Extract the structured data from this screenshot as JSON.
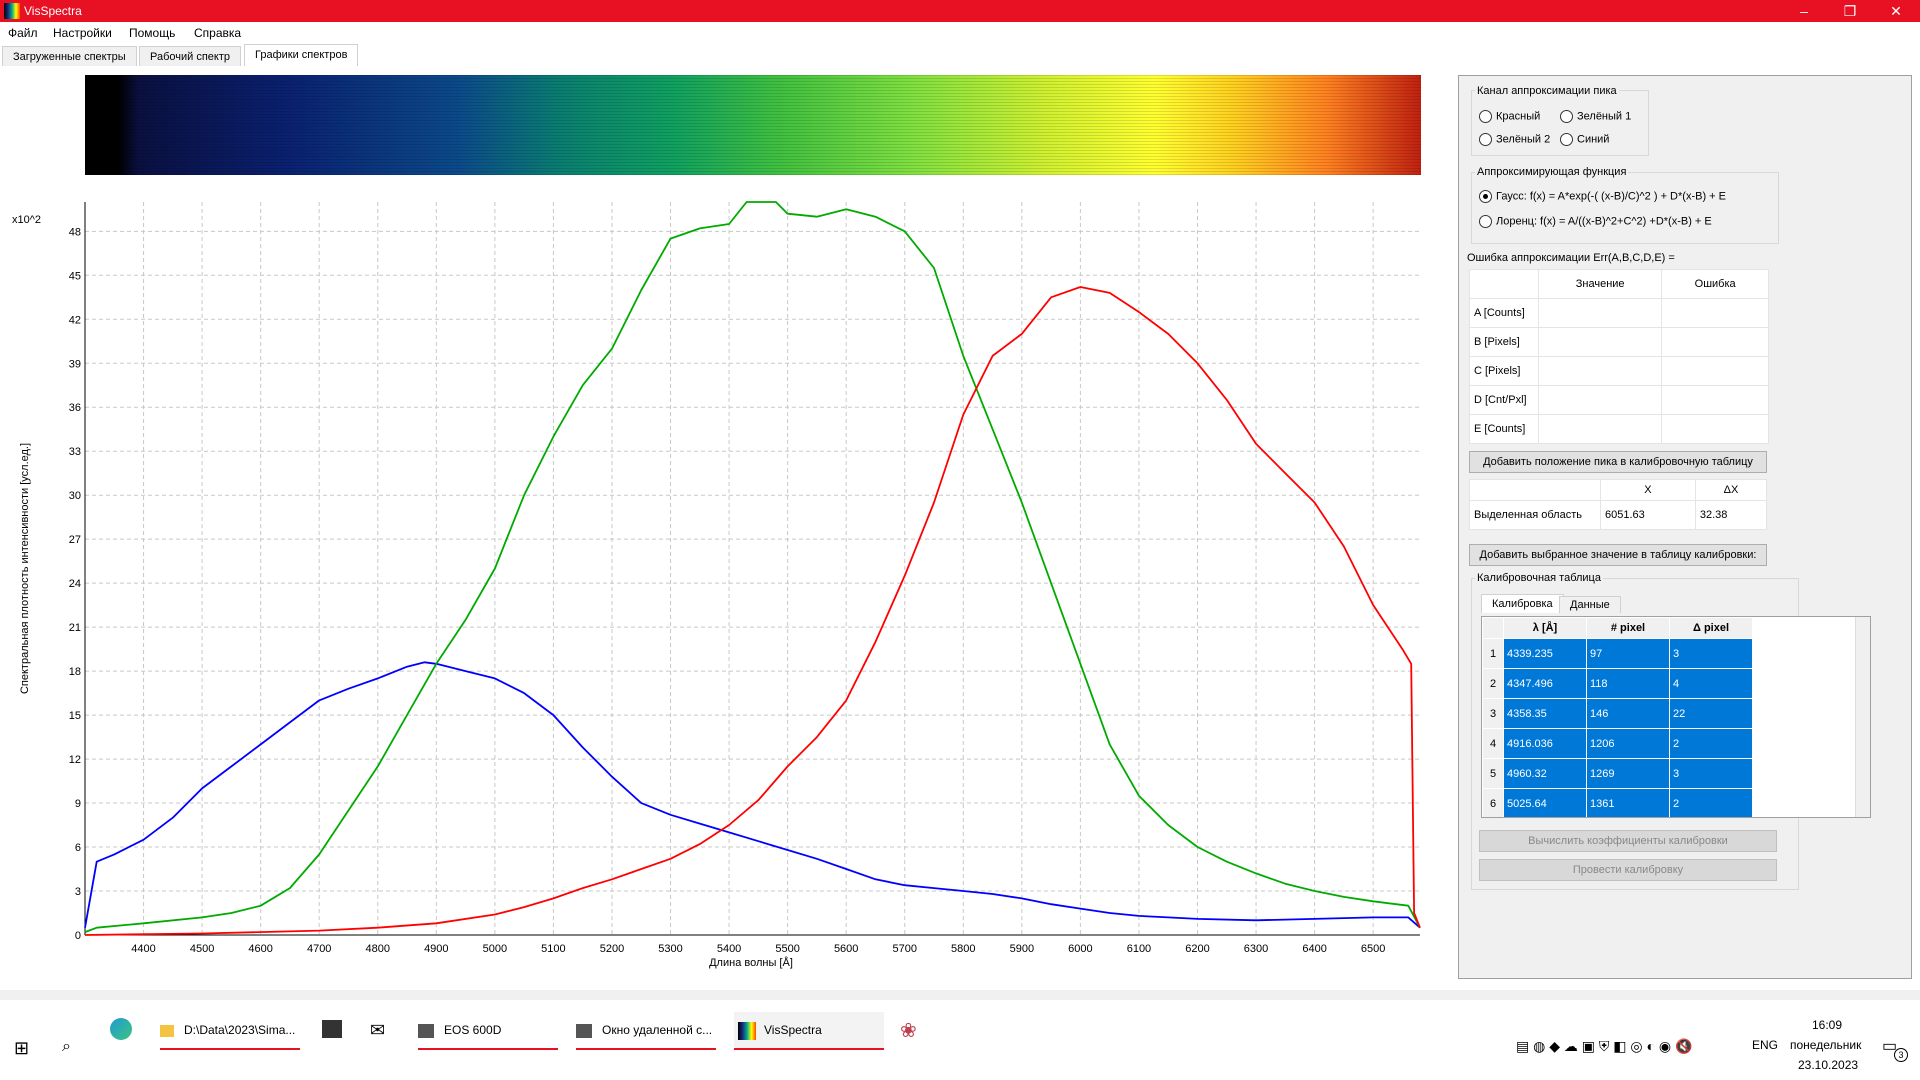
{
  "window": {
    "title": "VisSpectra",
    "controls": [
      "–",
      "❐",
      "✕"
    ]
  },
  "menu": [
    "Файл",
    "Настройки",
    "Помощь",
    "Справка"
  ],
  "tabs": [
    {
      "label": "Загруженные спектры",
      "active": false
    },
    {
      "label": "Рабочий спектр",
      "active": false
    },
    {
      "label": "Графики спектров",
      "active": true
    }
  ],
  "chart_data": {
    "type": "line",
    "ylabel": "Спектральная плотность интенсивности [усл.ед.]",
    "xlabel": "Длина волны  [Å]",
    "yscale_label": "x10^2",
    "xlim": [
      4300,
      6580
    ],
    "ylim": [
      0,
      50
    ],
    "xticks": [
      4400,
      4500,
      4600,
      4700,
      4800,
      4900,
      5000,
      5100,
      5200,
      5300,
      5400,
      5500,
      5600,
      5700,
      5800,
      5900,
      6000,
      6100,
      6200,
      6300,
      6400,
      6500
    ],
    "yticks": [
      0,
      3,
      6,
      9,
      12,
      15,
      18,
      21,
      24,
      27,
      30,
      33,
      36,
      39,
      42,
      45,
      48
    ],
    "grid": true,
    "series": [
      {
        "color": "#0000ff",
        "points": [
          [
            4300,
            0.5
          ],
          [
            4320,
            5.0
          ],
          [
            4350,
            5.5
          ],
          [
            4400,
            6.5
          ],
          [
            4450,
            8.0
          ],
          [
            4500,
            10.0
          ],
          [
            4550,
            11.5
          ],
          [
            4600,
            13.0
          ],
          [
            4650,
            14.5
          ],
          [
            4700,
            16.0
          ],
          [
            4750,
            16.8
          ],
          [
            4800,
            17.5
          ],
          [
            4850,
            18.3
          ],
          [
            4880,
            18.6
          ],
          [
            4900,
            18.5
          ],
          [
            4950,
            18.0
          ],
          [
            5000,
            17.5
          ],
          [
            5050,
            16.5
          ],
          [
            5100,
            15.0
          ],
          [
            5150,
            12.8
          ],
          [
            5200,
            10.8
          ],
          [
            5250,
            9.0
          ],
          [
            5300,
            8.2
          ],
          [
            5350,
            7.6
          ],
          [
            5400,
            7.0
          ],
          [
            5450,
            6.4
          ],
          [
            5500,
            5.8
          ],
          [
            5550,
            5.2
          ],
          [
            5600,
            4.5
          ],
          [
            5650,
            3.8
          ],
          [
            5700,
            3.4
          ],
          [
            5750,
            3.2
          ],
          [
            5800,
            3.0
          ],
          [
            5850,
            2.8
          ],
          [
            5900,
            2.5
          ],
          [
            5950,
            2.1
          ],
          [
            6000,
            1.8
          ],
          [
            6050,
            1.5
          ],
          [
            6100,
            1.3
          ],
          [
            6150,
            1.2
          ],
          [
            6200,
            1.1
          ],
          [
            6300,
            1.0
          ],
          [
            6400,
            1.1
          ],
          [
            6500,
            1.2
          ],
          [
            6560,
            1.2
          ],
          [
            6580,
            0.5
          ]
        ]
      },
      {
        "color": "#00aa00",
        "points": [
          [
            4300,
            0.2
          ],
          [
            4320,
            0.5
          ],
          [
            4400,
            0.8
          ],
          [
            4500,
            1.2
          ],
          [
            4550,
            1.5
          ],
          [
            4600,
            2.0
          ],
          [
            4650,
            3.2
          ],
          [
            4700,
            5.5
          ],
          [
            4750,
            8.5
          ],
          [
            4800,
            11.5
          ],
          [
            4850,
            15.0
          ],
          [
            4900,
            18.5
          ],
          [
            4950,
            21.5
          ],
          [
            5000,
            25.0
          ],
          [
            5050,
            30.0
          ],
          [
            5100,
            34.0
          ],
          [
            5150,
            37.5
          ],
          [
            5200,
            40.0
          ],
          [
            5250,
            44.0
          ],
          [
            5300,
            47.5
          ],
          [
            5350,
            48.2
          ],
          [
            5400,
            48.5
          ],
          [
            5430,
            50.0
          ],
          [
            5480,
            50.0
          ],
          [
            5500,
            49.2
          ],
          [
            5550,
            49.0
          ],
          [
            5600,
            49.5
          ],
          [
            5650,
            49.0
          ],
          [
            5700,
            48.0
          ],
          [
            5750,
            45.5
          ],
          [
            5800,
            39.5
          ],
          [
            5850,
            34.5
          ],
          [
            5900,
            29.5
          ],
          [
            5950,
            24.0
          ],
          [
            6000,
            18.5
          ],
          [
            6050,
            13.0
          ],
          [
            6100,
            9.5
          ],
          [
            6150,
            7.5
          ],
          [
            6200,
            6.0
          ],
          [
            6250,
            5.0
          ],
          [
            6300,
            4.2
          ],
          [
            6350,
            3.5
          ],
          [
            6400,
            3.0
          ],
          [
            6450,
            2.6
          ],
          [
            6500,
            2.3
          ],
          [
            6560,
            2.0
          ],
          [
            6580,
            0.5
          ]
        ]
      },
      {
        "color": "#ff0000",
        "points": [
          [
            4300,
            0.0
          ],
          [
            4500,
            0.1
          ],
          [
            4700,
            0.3
          ],
          [
            4800,
            0.5
          ],
          [
            4900,
            0.8
          ],
          [
            5000,
            1.4
          ],
          [
            5050,
            1.9
          ],
          [
            5100,
            2.5
          ],
          [
            5150,
            3.2
          ],
          [
            5200,
            3.8
          ],
          [
            5250,
            4.5
          ],
          [
            5300,
            5.2
          ],
          [
            5350,
            6.2
          ],
          [
            5400,
            7.5
          ],
          [
            5450,
            9.2
          ],
          [
            5500,
            11.5
          ],
          [
            5550,
            13.5
          ],
          [
            5600,
            16.0
          ],
          [
            5650,
            20.0
          ],
          [
            5700,
            24.5
          ],
          [
            5750,
            29.5
          ],
          [
            5800,
            35.5
          ],
          [
            5850,
            39.5
          ],
          [
            5900,
            41.0
          ],
          [
            5950,
            43.5
          ],
          [
            6000,
            44.2
          ],
          [
            6050,
            43.8
          ],
          [
            6100,
            42.5
          ],
          [
            6150,
            41.0
          ],
          [
            6200,
            39.0
          ],
          [
            6250,
            36.5
          ],
          [
            6300,
            33.5
          ],
          [
            6350,
            31.5
          ],
          [
            6400,
            29.5
          ],
          [
            6450,
            26.5
          ],
          [
            6500,
            22.5
          ],
          [
            6550,
            19.5
          ],
          [
            6565,
            18.5
          ],
          [
            6570,
            1.5
          ],
          [
            6580,
            0.5
          ]
        ]
      }
    ]
  },
  "panel": {
    "channel_group": "Канал аппроксимации пика",
    "channels": [
      "Красный",
      "Зелёный 1",
      "Зелёный 2",
      "Синий"
    ],
    "func_group": "Аппроксимирующая функция",
    "func_gauss": "Гаусс: f(x) =  A*exp(-( (x-B)/C)^2 ) + D*(x-B) + E",
    "func_lorentz": "Лоренц: f(x) = A/((x-B)^2+C^2) +D*(x-B) + E",
    "err_label": "Ошибка аппроксимации Err(A,B,C,D,E) =",
    "fit_headers": [
      "Значение",
      "Ошибка"
    ],
    "fit_rows": [
      "A [Counts]",
      "B [Pixels]",
      "C [Pixels]",
      "D [Cnt/Pxl]",
      "E [Counts]"
    ],
    "add_peak_button": "Добавить положение пика в калибровочную таблицу",
    "sel_headers": [
      "X",
      "ΔX"
    ],
    "sel_label": "Выделенная область",
    "sel_x": "6051.63",
    "sel_dx": "32.38",
    "add_value_button": "Добавить выбранное значение в таблицу калибровки:",
    "cal_group": "Калибровочная таблица",
    "cal_tabs": [
      "Калибровка",
      "Данные"
    ],
    "cal_headers": [
      "λ [Å]",
      "# pixel",
      "Δ pixel"
    ],
    "cal_rows": [
      [
        "1",
        "4339.235",
        "97",
        "3"
      ],
      [
        "2",
        "4347.496",
        "118",
        "4"
      ],
      [
        "3",
        "4358.35",
        "146",
        "22"
      ],
      [
        "4",
        "4916.036",
        "1206",
        "2"
      ],
      [
        "5",
        "4960.32",
        "1269",
        "3"
      ],
      [
        "6",
        "5025.64",
        "1361",
        "2"
      ]
    ],
    "compute_button": "Вычислить коэффициенты калибровки",
    "calibrate_button": "Провести калибровку"
  },
  "taskbar": {
    "apps": [
      "D:\\Data\\2023\\Sima...",
      "EOS 600D",
      "Окно удаленной с...",
      "VisSpectra"
    ],
    "lang": "ENG",
    "time": "16:09",
    "day": "понедельник",
    "date": "23.10.2023",
    "notif_count": "3"
  }
}
